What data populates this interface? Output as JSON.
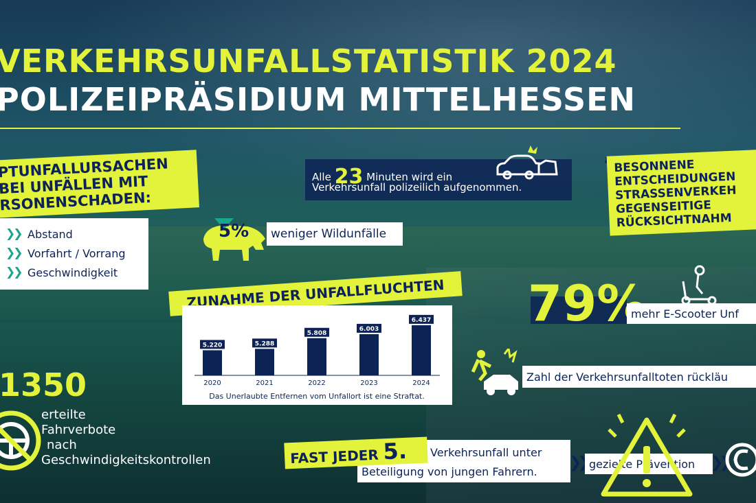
{
  "title_line1": "VERKEHRSUNFALLSTATISTIK 2024",
  "title_line2": "POLIZEIPRÄSIDIUM MITTELHESSEN",
  "causes": {
    "heading": "PTUNFALLURSACHEN BEI UNFÄLLEN MIT RSONENSCHADEN:",
    "items": [
      "Abstand",
      "Vorfahrt / Vorrang",
      "Geschwindigkeit"
    ]
  },
  "minutes": {
    "prefix": "Alle",
    "number": "23",
    "suffix": "Minuten wird ein",
    "line2": "Verkehrsunfall polizeilich aufgenommen."
  },
  "wildlife": {
    "percent": "5%",
    "text": "weniger Wildunfälle"
  },
  "quote": "BESONNENE ENTSCHEIDUNGEN STRASSENVERKEH GEGENSEITIGE RÜCKSICHTNAHM",
  "chart_heading": "ZUNAHME DER UNFALLFLUCHTEN",
  "chart_data": {
    "type": "bar",
    "title": "ZUNAHME DER UNFALLFLUCHTEN",
    "categories": [
      "2020",
      "2021",
      "2022",
      "2023",
      "2024"
    ],
    "values": [
      5220,
      5288,
      5808,
      6003,
      6437
    ],
    "value_labels": [
      "5.220",
      "5.288",
      "5.808",
      "6.003",
      "6.437"
    ],
    "caption": "Das Unerlaubte Entfernen vom Unfallort ist eine Straftat.",
    "bar_color": "#0d2355"
  },
  "escooter": {
    "percent": "79%",
    "text": "mehr E-Scooter Unf"
  },
  "fatalities_text": "Zahl der Verkehrsunfalltoten rückläu",
  "driving_bans": {
    "number": "1350",
    "text_lines": [
      "erteilte",
      "Fahrverbote",
      "nach",
      "Geschwindigkeitskontrollen"
    ]
  },
  "young_drivers": {
    "heading": "FAST JEDER",
    "number": "5.",
    "line1": "Verkehrsunfall unter",
    "line2": "Beteiligung von jungen Fahrern."
  },
  "prevention_text": "gezielte Prävention",
  "colors": {
    "accent": "#e3f23b",
    "navy": "#0d2355",
    "teal": "#1aa58d"
  },
  "icons": [
    "car-crash-icon",
    "boar-icon",
    "e-scooter-icon",
    "person-hit-by-car-icon",
    "steering-wheel-prohibited-icon",
    "warning-triangle-icon",
    "logo-icon"
  ]
}
